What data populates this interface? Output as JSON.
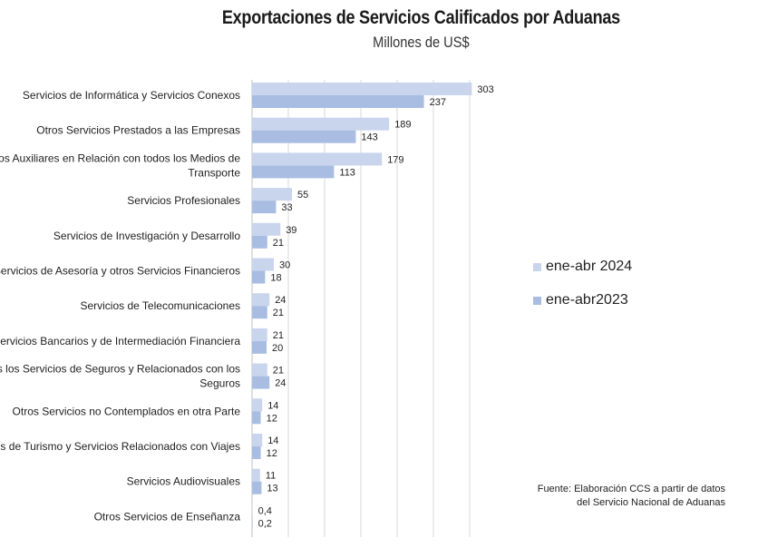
{
  "chart_data": {
    "type": "bar",
    "orientation": "horizontal",
    "title": "Exportaciones de Servicios Calificados por Aduanas",
    "subtitle": "Millones de US$",
    "categories": [
      [
        "Servicios de Informática y Servicios Conexos"
      ],
      [
        "Otros Servicios Prestados a las Empresas"
      ],
      [
        "Servicios Auxiliares en Relación con todos los Medios de",
        "Transporte"
      ],
      [
        "Servicios Profesionales"
      ],
      [
        "Servicios de Investigación y Desarrollo"
      ],
      [
        "Servicios de Asesoría y otros Servicios Financieros"
      ],
      [
        "Servicios de Telecomunicaciones"
      ],
      [
        "Servicios Bancarios y de Intermediación Financiera"
      ],
      [
        "Todos los Servicios de Seguros y Relacionados con los",
        "Seguros"
      ],
      [
        "Otros Servicios no Contemplados en otra Parte"
      ],
      [
        "Servicios de Turismo y Servicios Relacionados con Viajes"
      ],
      [
        "Servicios Audiovisuales"
      ],
      [
        "Otros Servicios de Enseñanza"
      ]
    ],
    "series": [
      {
        "name": "ene-abr 2024",
        "color": "#c9d5ec",
        "values": [
          303,
          189,
          179,
          55,
          39,
          30,
          24,
          21,
          21,
          14,
          14,
          11,
          0.4
        ],
        "labels": [
          "303",
          "189",
          "179",
          "55",
          "39",
          "30",
          "24",
          "21",
          "21",
          "14",
          "14",
          "11",
          "0,4"
        ]
      },
      {
        "name": "ene-abr2023",
        "color": "#a9bde3",
        "values": [
          237,
          143,
          113,
          33,
          21,
          18,
          21,
          20,
          24,
          12,
          12,
          13,
          0.2
        ],
        "labels": [
          "237",
          "143",
          "113",
          "33",
          "21",
          "18",
          "21",
          "20",
          "24",
          "12",
          "12",
          "13",
          "0,2"
        ]
      }
    ],
    "xlim": [
      0,
      300
    ],
    "grid": true,
    "legend_position": "right",
    "source": [
      "Fuente: Elaboración CCS a partir de datos",
      "del Servicio Nacional de Aduanas"
    ]
  }
}
